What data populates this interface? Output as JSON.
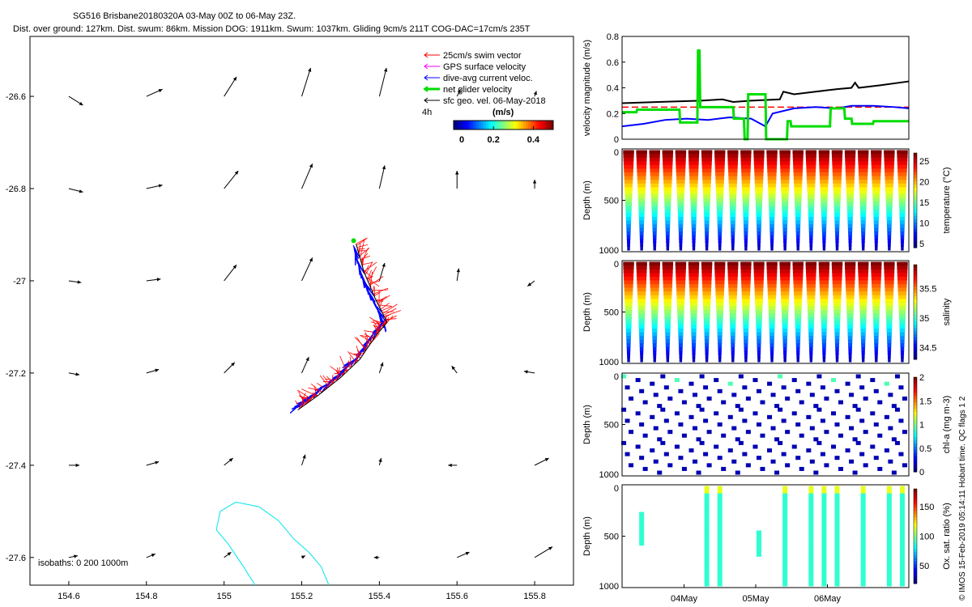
{
  "header": {
    "title": "SG516 Brisbane20180320A 03-May 00Z to 06-May 23Z.",
    "subtitle": "Dist. over ground: 127km. Dist. swum: 86km. Mission DOG: 1911km. Swum: 1037km. Gliding 9cm/s 211T COG-DAC=17cm/s 235T"
  },
  "side_note": "© IMOS 15-Feb-2019 05:14:11 Hobart time. QC flags 1  2",
  "colors": {
    "swim": "#ff0000",
    "gps": "#ff00ff",
    "dac": "#0000ff",
    "net": "#00dd00",
    "sfc": "#000000",
    "isobath": "#00e5ee"
  },
  "chart_data": [
    {
      "id": "map",
      "type": "scatter",
      "title": "",
      "xlim": [
        154.5,
        155.9
      ],
      "ylim": [
        -27.66,
        -26.47
      ],
      "xticks": [
        154.6,
        154.8,
        155,
        155.2,
        155.4,
        155.6,
        155.8
      ],
      "xtick_labels": [
        "154.6",
        "154.8",
        "155",
        "155.2",
        "155.4",
        "155.6",
        "155.8"
      ],
      "yticks": [
        -26.6,
        -26.8,
        -27,
        -27.2,
        -27.4,
        -27.6
      ],
      "ytick_labels": [
        "-26.6",
        "-26.8",
        "-27",
        "-27.2",
        "-27.4",
        "-27.6"
      ],
      "legend": {
        "items": [
          {
            "label": "25cm/s swim vector",
            "color": "#ff0000"
          },
          {
            "label": "GPS surface velocity",
            "color": "#ff00ff"
          },
          {
            "label": "dive-avg current veloc.",
            "color": "#0000ff"
          },
          {
            "label": "net glider velocity",
            "color": "#00dd00"
          },
          {
            "label": "sfc geo. vel. 06-May-2018",
            "color": "#000000"
          }
        ],
        "interval_label": "4h",
        "colorbar": {
          "title": "(m/s)",
          "range": [
            0,
            0.5
          ],
          "ticks": [
            0,
            0.2,
            0.4
          ],
          "tick_labels": [
            "0",
            "0.2",
            "0.4"
          ]
        }
      },
      "isobath_label": "isobaths: 0   200   1000m",
      "glider_track": [
        [
          155.34,
          -26.92
        ],
        [
          155.36,
          -26.98
        ],
        [
          155.39,
          -27.04
        ],
        [
          155.42,
          -27.09
        ],
        [
          155.39,
          -27.12
        ],
        [
          155.35,
          -27.17
        ],
        [
          155.3,
          -27.21
        ],
        [
          155.24,
          -27.25
        ],
        [
          155.19,
          -27.28
        ]
      ],
      "sfc_velocity_grid": {
        "lons": [
          154.6,
          154.8,
          155,
          155.2,
          155.4,
          155.6,
          155.8
        ],
        "lats": [
          -26.6,
          -26.8,
          -27,
          -27.2,
          -27.4,
          -27.6
        ],
        "u": [
          [
            0.08,
            0.09,
            0.07,
            0.05,
            0.04,
            0.02,
            0.01
          ],
          [
            0.08,
            0.09,
            0.08,
            0.06,
            0.03,
            0.0,
            0.0
          ],
          [
            0.07,
            0.08,
            0.07,
            0.06,
            0.03,
            0.01,
            -0.04
          ],
          [
            0.06,
            0.07,
            0.06,
            0.04,
            0.02,
            -0.03,
            -0.06
          ],
          [
            0.06,
            0.07,
            0.05,
            0.02,
            0.01,
            -0.05,
            0.08
          ],
          [
            0.05,
            0.05,
            0.04,
            0.02,
            -0.03,
            0.07,
            0.1
          ]
        ],
        "v": [
          [
            -0.05,
            0.04,
            0.11,
            0.16,
            0.16,
            0.04,
            0.03
          ],
          [
            -0.02,
            0.02,
            0.1,
            0.14,
            0.13,
            0.1,
            0.05
          ],
          [
            -0.01,
            0.01,
            0.09,
            0.13,
            0.1,
            0.07,
            -0.03
          ],
          [
            -0.01,
            0.02,
            0.06,
            0.09,
            0.06,
            0.04,
            0.01
          ],
          [
            0.0,
            0.02,
            0.04,
            0.06,
            0.04,
            0.0,
            0.04
          ],
          [
            0.01,
            0.02,
            0.03,
            0.01,
            0.0,
            0.03,
            0.06
          ]
        ]
      }
    },
    {
      "id": "velocity",
      "type": "line",
      "ylabel": "velocity magnitude (m/s)",
      "ylim": [
        0,
        0.8
      ],
      "yticks": [
        0,
        0.2,
        0.4,
        0.6,
        0.8
      ],
      "ytick_labels": [
        "0",
        "0.2",
        "0.4",
        "0.6",
        "0.8"
      ],
      "xlim": [
        0,
        4
      ],
      "series": [
        {
          "name": "sfc",
          "color": "#000000",
          "x": [
            0,
            0.5,
            1.1,
            1.4,
            1.55,
            1.8,
            2.2,
            2.25,
            2.4,
            2.7,
            3.0,
            3.2,
            3.25,
            3.3,
            3.6,
            4.0
          ],
          "y": [
            0.28,
            0.29,
            0.3,
            0.31,
            0.29,
            0.3,
            0.31,
            0.37,
            0.35,
            0.37,
            0.39,
            0.4,
            0.44,
            0.4,
            0.42,
            0.45
          ]
        },
        {
          "name": "swim",
          "color": "#ff0000",
          "x": [
            0,
            4
          ],
          "y": [
            0.25,
            0.25
          ]
        },
        {
          "name": "dac",
          "color": "#0000ff",
          "x": [
            0,
            0.3,
            0.6,
            0.9,
            1.2,
            1.5,
            1.8,
            2.0,
            2.1,
            2.4,
            2.7,
            3.0,
            3.2,
            3.5,
            3.8,
            4.0
          ],
          "y": [
            0.1,
            0.12,
            0.15,
            0.16,
            0.15,
            0.17,
            0.16,
            0.1,
            0.2,
            0.24,
            0.25,
            0.24,
            0.26,
            0.26,
            0.25,
            0.24
          ]
        },
        {
          "name": "net",
          "color": "#00dd00",
          "x": [
            0,
            0.2,
            0.21,
            0.8,
            0.81,
            1.05,
            1.06,
            1.08,
            1.09,
            1.3,
            1.31,
            1.55,
            1.56,
            1.7,
            1.71,
            1.75,
            1.76,
            2.0,
            2.01,
            2.3,
            2.31,
            2.35,
            2.36,
            2.4,
            2.41,
            2.9,
            2.91,
            3.1,
            3.11,
            3.2,
            3.21,
            3.5,
            3.51,
            4.0
          ],
          "y": [
            0.21,
            0.21,
            0.23,
            0.23,
            0.13,
            0.13,
            0.69,
            0.69,
            0.25,
            0.25,
            0.25,
            0.25,
            0.16,
            0.16,
            0.0,
            0.0,
            0.35,
            0.35,
            0.0,
            0.0,
            0.14,
            0.14,
            0.1,
            0.1,
            0.1,
            0.1,
            0.24,
            0.24,
            0.16,
            0.16,
            0.12,
            0.12,
            0.14,
            0.14
          ]
        }
      ]
    },
    {
      "id": "temperature",
      "type": "scatter",
      "ylabel": "Depth (m)",
      "cbar_label": "temperature (°C)",
      "ylim": [
        1000,
        0
      ],
      "yticks": [
        0,
        500,
        1000
      ],
      "ytick_labels": [
        "0",
        "500",
        "1000"
      ],
      "crange": [
        4,
        27
      ],
      "cticks": [
        5,
        10,
        15,
        20,
        25
      ],
      "ctick_labels": [
        "5",
        "10",
        "15",
        "20",
        "25"
      ],
      "profiles": 22
    },
    {
      "id": "salinity",
      "type": "scatter",
      "ylabel": "Depth (m)",
      "cbar_label": "salinity",
      "ylim": [
        1000,
        0
      ],
      "yticks": [
        0,
        500,
        1000
      ],
      "ytick_labels": [
        "0",
        "500",
        "1000"
      ],
      "crange": [
        34.3,
        35.9
      ],
      "cticks": [
        34.5,
        35,
        35.5
      ],
      "ctick_labels": [
        "34.5",
        "35",
        "35.5"
      ],
      "profiles": 22
    },
    {
      "id": "chla",
      "type": "scatter",
      "ylabel": "Depth (m)",
      "cbar_label": "chl-a (mg m-3)",
      "ylim": [
        1000,
        0
      ],
      "yticks": [
        0,
        500,
        1000
      ],
      "ytick_labels": [
        "0",
        "500",
        "1000"
      ],
      "crange": [
        0,
        2
      ],
      "cticks": [
        0,
        0.5,
        1,
        1.5,
        2
      ],
      "ctick_labels": [
        "0",
        "0.5",
        "1",
        "1.5",
        "2"
      ],
      "profiles": 22
    },
    {
      "id": "oxygen",
      "type": "scatter",
      "ylabel": "Depth (m)",
      "cbar_label": "Ox. sat. ratio (%)",
      "ylim": [
        1000,
        0
      ],
      "yticks": [
        0,
        500,
        1000
      ],
      "ytick_labels": [
        "0",
        "500",
        "1000"
      ],
      "crange": [
        20,
        180
      ],
      "cticks": [
        50,
        100,
        150
      ],
      "ctick_labels": [
        "50",
        "100",
        "150"
      ],
      "xticks": [
        1,
        2,
        3
      ],
      "xtick_labels": [
        "04May",
        "05May",
        "06May"
      ],
      "xlim": [
        0,
        4
      ]
    }
  ]
}
